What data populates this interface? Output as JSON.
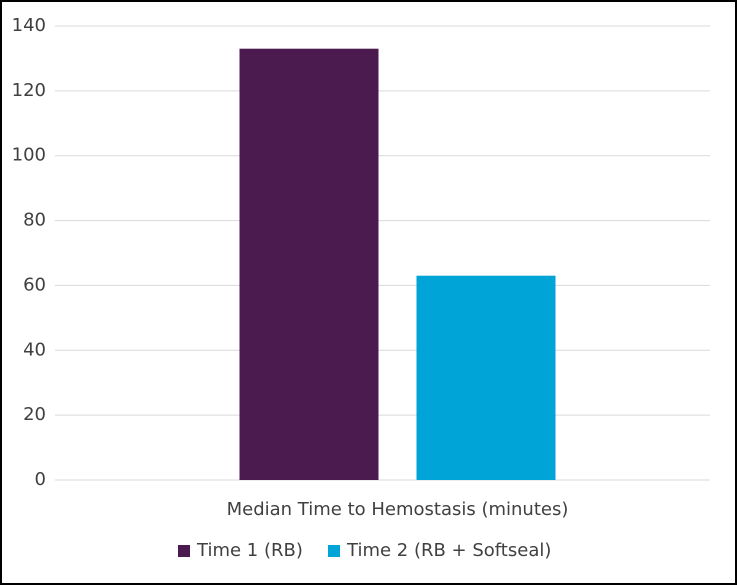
{
  "chart_data": {
    "type": "bar",
    "categories": [
      "Median Time to Hemostasis (minutes)"
    ],
    "series": [
      {
        "name": "Time 1 (RB)",
        "color": "#4b1a4f",
        "values": [
          133
        ]
      },
      {
        "name": "Time 2 (RB + Softseal)",
        "color": "#00a4d6",
        "values": [
          63
        ]
      }
    ],
    "ylim": [
      0,
      140
    ],
    "yticks": [
      0,
      20,
      40,
      60,
      80,
      100,
      120,
      140
    ],
    "grid": true,
    "legend": "bottom"
  }
}
